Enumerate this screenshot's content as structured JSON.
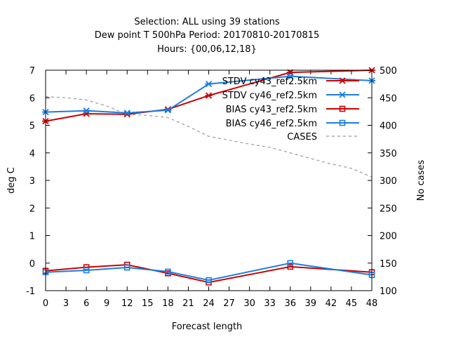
{
  "chart_data": {
    "type": "line",
    "title_lines": [
      "Selection: ALL using    39 stations",
      "Dew point T 500hPa   Period: 20170810-20170815",
      "Hours: {00,06,12,18}"
    ],
    "xlabel": "Forecast length",
    "ylabel": "deg C",
    "y2label": "No cases",
    "xlim": [
      0,
      48
    ],
    "ylim": [
      -1,
      7
    ],
    "y2lim": [
      100,
      500
    ],
    "x_ticks": [
      0,
      3,
      6,
      9,
      12,
      15,
      18,
      21,
      24,
      27,
      30,
      33,
      36,
      39,
      42,
      45,
      48
    ],
    "y_ticks": [
      -1,
      0,
      1,
      2,
      3,
      4,
      5,
      6,
      7
    ],
    "y2_ticks": [
      100,
      150,
      200,
      250,
      300,
      350,
      400,
      450,
      500
    ],
    "x_tick_labels": [
      "0",
      "3",
      "6",
      "9",
      "12",
      "15",
      "18",
      "21",
      "24",
      "27",
      "30",
      "33",
      "36",
      "39",
      "42",
      "45",
      "48"
    ],
    "y_tick_labels": [
      "-1",
      "0",
      "1",
      "2",
      "3",
      "4",
      "5",
      "6",
      "7"
    ],
    "y2_tick_labels": [
      "100",
      "150",
      "200",
      "250",
      "300",
      "350",
      "400",
      "450",
      "500"
    ],
    "legend_position": "top-right",
    "series": [
      {
        "name": "STDV cy43_ref2.5km",
        "axis": "y",
        "color": "#cc0000",
        "marker": "star",
        "dash": "",
        "x": [
          0,
          6,
          12,
          18,
          24,
          36,
          48
        ],
        "y": [
          5.15,
          5.42,
          5.4,
          5.58,
          6.08,
          6.92,
          7.0
        ]
      },
      {
        "name": "STDV cy46_ref2.5km",
        "axis": "y",
        "color": "#1a7fe0",
        "marker": "star",
        "dash": "",
        "x": [
          0,
          6,
          12,
          18,
          24,
          36,
          48
        ],
        "y": [
          5.48,
          5.53,
          5.45,
          5.55,
          6.5,
          6.78,
          6.62
        ]
      },
      {
        "name": "BIAS cy43_ref2.5km",
        "axis": "y",
        "color": "#cc0000",
        "marker": "square",
        "dash": "",
        "x": [
          0,
          6,
          12,
          18,
          24,
          36,
          48
        ],
        "y": [
          -0.28,
          -0.15,
          -0.06,
          -0.37,
          -0.7,
          -0.13,
          -0.33
        ]
      },
      {
        "name": "BIAS cy46_ref2.5km",
        "axis": "y",
        "color": "#1a7fe0",
        "marker": "square",
        "dash": "",
        "x": [
          0,
          6,
          12,
          18,
          24,
          36,
          48
        ],
        "y": [
          -0.33,
          -0.26,
          -0.16,
          -0.31,
          -0.62,
          0.0,
          -0.43
        ]
      },
      {
        "name": "CASES",
        "axis": "y2",
        "color": "#999999",
        "marker": "none",
        "dash": "4,4",
        "x": [
          0,
          3,
          6,
          9,
          12,
          15,
          18,
          21,
          24,
          27,
          30,
          33,
          36,
          39,
          42,
          45,
          48
        ],
        "y": [
          452,
          450,
          446,
          435,
          420,
          418,
          414,
          398,
          380,
          373,
          366,
          360,
          350,
          340,
          330,
          322,
          306
        ]
      }
    ]
  }
}
